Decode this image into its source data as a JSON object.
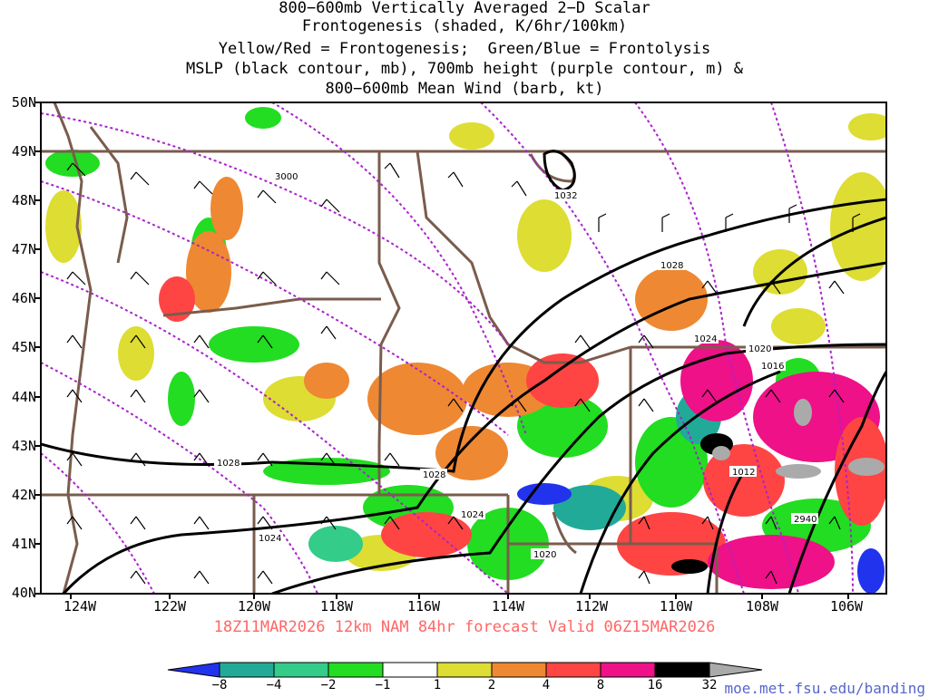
{
  "header": {
    "title_lines": [
      "800−600mb Vertically Averaged 2−D Scalar",
      "Frontogenesis (shaded, K/6hr/100km)",
      "Yellow/Red = Frontogenesis;  Green/Blue = Frontolysis",
      "MSLP (black contour, mb), 700mb height (purple contour, m) &",
      "800−600mb Mean Wind (barb, kt)"
    ]
  },
  "map": {
    "lat_labels": [
      "50N",
      "49N",
      "48N",
      "47N",
      "46N",
      "45N",
      "44N",
      "43N",
      "42N",
      "41N",
      "40N"
    ],
    "lon_labels": [
      "124W",
      "122W",
      "120W",
      "118W",
      "116W",
      "114W",
      "112W",
      "110W",
      "108W",
      "106W"
    ],
    "mslp_contour_labels": [
      "1032",
      "1028",
      "1024",
      "1020",
      "1016",
      "1012",
      "1028",
      "1028",
      "1024",
      "1024",
      "1020"
    ],
    "height_contour_labels": [
      "3000",
      "2940"
    ],
    "colors": {
      "mslp_contour": "#000000",
      "height_contour": "#aa22cc",
      "state_borders": "#7a5c4c",
      "wind_barb": "#000000"
    }
  },
  "footer": {
    "valid_text": "18Z11MAR2026 12km NAM 84hr forecast Valid 06Z15MAR2026",
    "credit": "moe.met.fsu.edu/banding"
  },
  "colorbar": {
    "tick_labels": [
      "−8",
      "−4",
      "−2",
      "−1",
      "1",
      "2",
      "4",
      "8",
      "16",
      "32"
    ],
    "segment_colors": [
      "#2233ee",
      "#22aa99",
      "#33cc88",
      "#22dd22",
      "#ffffff",
      "#dddd33",
      "#ee8833",
      "#ff4444",
      "#ee1188",
      "#000000",
      "#aaaaaa"
    ]
  }
}
